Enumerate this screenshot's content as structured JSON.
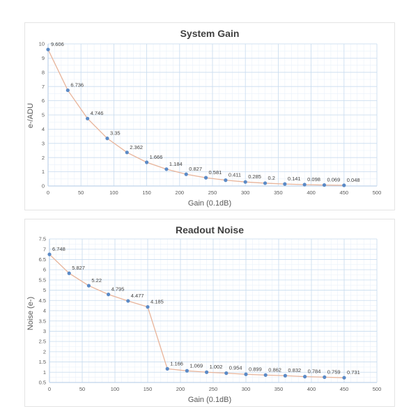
{
  "colors": {
    "line": "#e8b49a",
    "marker": "#5b8ac6",
    "grid_major": "#c9dcef",
    "grid_minor": "#e9f1fa",
    "axis": "#bfd3ea"
  },
  "chart_data": [
    {
      "type": "line",
      "title": "System Gain",
      "xlabel": "Gain (0.1dB)",
      "ylabel": "e-/ADU",
      "xlim": [
        0,
        500
      ],
      "ylim": [
        0,
        10
      ],
      "xticks": [
        0,
        50,
        100,
        150,
        200,
        250,
        300,
        350,
        400,
        450,
        500
      ],
      "yticks": [
        0,
        1,
        2,
        3,
        4,
        5,
        6,
        7,
        8,
        9,
        10
      ],
      "grid": true,
      "series": [
        {
          "x": [
            0,
            30,
            60,
            90,
            120,
            150,
            180,
            210,
            240,
            270,
            300,
            330,
            360,
            390,
            420,
            450
          ],
          "y": [
            9.606,
            6.736,
            4.746,
            3.35,
            2.362,
            1.666,
            1.184,
            0.827,
            0.581,
            0.411,
            0.285,
            0.2,
            0.141,
            0.098,
            0.069,
            0.048
          ],
          "labels": [
            "9.606",
            "6.736",
            "4.746",
            "3.35",
            "2.362",
            "1.666",
            "1.184",
            "0.827",
            "0.581",
            "0.411",
            "0.285",
            "0.2",
            "0.141",
            "0.098",
            "0.069",
            "0.048"
          ]
        }
      ]
    },
    {
      "type": "line",
      "title": "Readout Noise",
      "xlabel": "Gain (0.1dB)",
      "ylabel": "Noise (e-)",
      "xlim": [
        0,
        500
      ],
      "ylim": [
        0.5,
        7.5
      ],
      "xticks": [
        0,
        50,
        100,
        150,
        200,
        250,
        300,
        350,
        400,
        450,
        500
      ],
      "yticks": [
        0.5,
        1,
        1.5,
        2,
        2.5,
        3,
        3.5,
        4,
        4.5,
        5,
        5.5,
        6,
        6.5,
        7,
        7.5
      ],
      "grid": true,
      "series": [
        {
          "x": [
            0,
            30,
            60,
            90,
            120,
            150,
            180,
            210,
            240,
            270,
            300,
            330,
            360,
            390,
            420,
            450
          ],
          "y": [
            6.748,
            5.827,
            5.22,
            4.795,
            4.477,
            4.185,
            1.166,
            1.069,
            1.002,
            0.954,
            0.899,
            0.862,
            0.832,
            0.784,
            0.759,
            0.731
          ],
          "labels": [
            "6.748",
            "5.827",
            "5.22",
            "4.795",
            "4.477",
            "4.185",
            "1.166",
            "1.069",
            "1.002",
            "0.954",
            "0.899",
            "0.862",
            "0.832",
            "0.784",
            "0.759",
            "0.731"
          ]
        }
      ]
    }
  ]
}
